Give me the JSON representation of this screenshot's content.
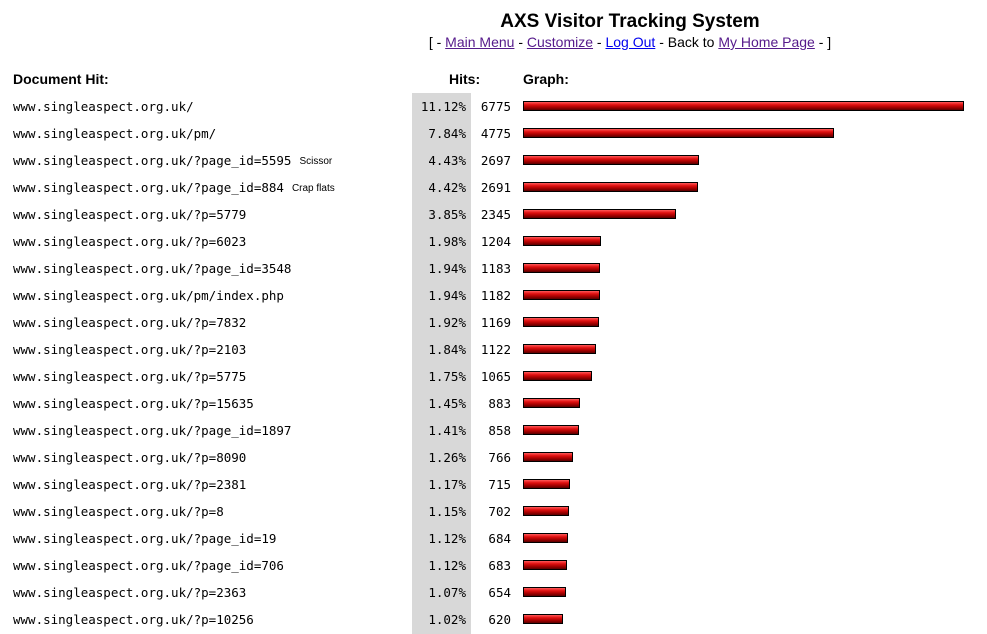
{
  "header": {
    "title": "AXS Visitor Tracking System",
    "nav_open": "[ - ",
    "main_menu": "Main Menu",
    "sep1": " - ",
    "customize": "Customize",
    "sep2": " - ",
    "logout": "Log Out",
    "sep3": " - Back to ",
    "home": "My Home Page",
    "nav_close": " - ]"
  },
  "columns": {
    "document": "Document Hit:",
    "hits": "Hits:",
    "graph": "Graph:"
  },
  "colors": {
    "bar": "#c00000",
    "percent_column_bg": "#d8d8d8",
    "link": "#1a0dab",
    "visited_link": "#551a8b"
  },
  "max_hits": 6775,
  "rows": [
    {
      "doc": "www.singleaspect.org.uk/",
      "note": "",
      "pct": "11.12%",
      "hits": "6775"
    },
    {
      "doc": "www.singleaspect.org.uk/pm/",
      "note": "",
      "pct": "7.84%",
      "hits": "4775"
    },
    {
      "doc": "www.singleaspect.org.uk/?page_id=5595",
      "note": "Scissor",
      "pct": "4.43%",
      "hits": "2697"
    },
    {
      "doc": "www.singleaspect.org.uk/?page_id=884",
      "note": "Crap flats",
      "pct": "4.42%",
      "hits": "2691"
    },
    {
      "doc": "www.singleaspect.org.uk/?p=5779",
      "note": "",
      "pct": "3.85%",
      "hits": "2345"
    },
    {
      "doc": "www.singleaspect.org.uk/?p=6023",
      "note": "",
      "pct": "1.98%",
      "hits": "1204"
    },
    {
      "doc": "www.singleaspect.org.uk/?page_id=3548",
      "note": "",
      "pct": "1.94%",
      "hits": "1183"
    },
    {
      "doc": "www.singleaspect.org.uk/pm/index.php",
      "note": "",
      "pct": "1.94%",
      "hits": "1182"
    },
    {
      "doc": "www.singleaspect.org.uk/?p=7832",
      "note": "",
      "pct": "1.92%",
      "hits": "1169"
    },
    {
      "doc": "www.singleaspect.org.uk/?p=2103",
      "note": "",
      "pct": "1.84%",
      "hits": "1122"
    },
    {
      "doc": "www.singleaspect.org.uk/?p=5775",
      "note": "",
      "pct": "1.75%",
      "hits": "1065"
    },
    {
      "doc": "www.singleaspect.org.uk/?p=15635",
      "note": "",
      "pct": "1.45%",
      "hits": "883"
    },
    {
      "doc": "www.singleaspect.org.uk/?page_id=1897",
      "note": "",
      "pct": "1.41%",
      "hits": "858"
    },
    {
      "doc": "www.singleaspect.org.uk/?p=8090",
      "note": "",
      "pct": "1.26%",
      "hits": "766"
    },
    {
      "doc": "www.singleaspect.org.uk/?p=2381",
      "note": "",
      "pct": "1.17%",
      "hits": "715"
    },
    {
      "doc": "www.singleaspect.org.uk/?p=8",
      "note": "",
      "pct": "1.15%",
      "hits": "702"
    },
    {
      "doc": "www.singleaspect.org.uk/?page_id=19",
      "note": "",
      "pct": "1.12%",
      "hits": "684"
    },
    {
      "doc": "www.singleaspect.org.uk/?page_id=706",
      "note": "",
      "pct": "1.12%",
      "hits": "683"
    },
    {
      "doc": "www.singleaspect.org.uk/?p=2363",
      "note": "",
      "pct": "1.07%",
      "hits": "654"
    },
    {
      "doc": "www.singleaspect.org.uk/?p=10256",
      "note": "",
      "pct": "1.02%",
      "hits": "620"
    }
  ]
}
